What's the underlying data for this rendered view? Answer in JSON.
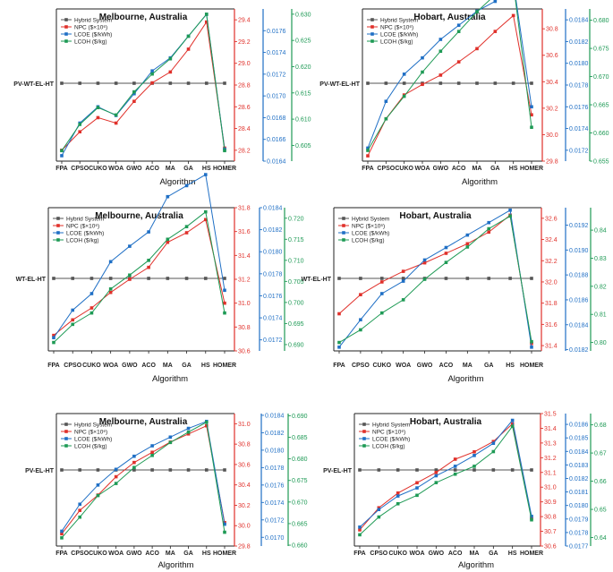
{
  "figure": {
    "categories": [
      "FPA",
      "CPSO",
      "CUKO",
      "WOA",
      "GWO",
      "ACO",
      "MA",
      "GA",
      "HS",
      "HOMER"
    ],
    "colors": {
      "hybrid": "#555555",
      "npc": "#e0302a",
      "lcoe": "#1f6fc5",
      "lcoh": "#1e9a55"
    }
  },
  "chart_data": [
    {
      "type": "line",
      "title": "Melbourne, Australia",
      "hybrid_label": "PV-WT-EL-HT",
      "xlabel": "Algorithm",
      "legend_position": "top-left",
      "legend": [
        "Hybrid System",
        "NPC ($×10⁶)",
        "LCOE ($/kWh)",
        "LCOH ($/kg)"
      ],
      "axes": {
        "npc": {
          "range": [
            28.1,
            29.5
          ],
          "ticks": [
            "28.2",
            "28.4",
            "28.6",
            "28.8",
            "29.0",
            "29.2",
            "29.4"
          ]
        },
        "lcoe": {
          "range": [
            0.0164,
            0.0178
          ],
          "ticks": [
            "0.0164",
            "0.0166",
            "0.0168",
            "0.0170",
            "0.0172",
            "0.0174",
            "0.0176"
          ]
        },
        "lcoh": {
          "range": [
            0.602,
            0.631
          ],
          "ticks": [
            "0.605",
            "0.610",
            "0.615",
            "0.620",
            "0.625",
            "0.630"
          ]
        }
      },
      "series": [
        {
          "name": "NPC ($×10⁶)",
          "axis": "npc",
          "values": [
            28.2,
            28.37,
            28.5,
            28.45,
            28.65,
            28.82,
            28.92,
            29.13,
            29.38,
            28.22
          ]
        },
        {
          "name": "LCOE ($/kWh)",
          "axis": "lcoe",
          "values": [
            0.01645,
            0.01675,
            0.0169,
            0.01682,
            0.01702,
            0.01723,
            0.01735,
            0.01755,
            0.01775,
            0.01651
          ]
        },
        {
          "name": "LCOH ($/kg)",
          "axis": "lcoh",
          "values": [
            0.604,
            0.609,
            0.6122,
            0.6108,
            0.6152,
            0.6186,
            0.6215,
            0.6258,
            0.63,
            0.604
          ]
        }
      ]
    },
    {
      "type": "line",
      "title": "Hobart, Australia",
      "hybrid_label": "PV-WT-EL-HT",
      "xlabel": "Algorithm",
      "legend_position": "top-left",
      "legend": [
        "Hybrid System",
        "NPC ($×10⁶)",
        "LCOE ($/kWh)",
        "LCOH ($/kg)"
      ],
      "axes": {
        "npc": {
          "range": [
            29.8,
            30.95
          ],
          "ticks": [
            "29.8",
            "30.0",
            "30.2",
            "30.4",
            "30.6",
            "30.8"
          ]
        },
        "lcoe": {
          "range": [
            0.0171,
            0.0185
          ],
          "ticks": [
            "0.0172",
            "0.0174",
            "0.0176",
            "0.0178",
            "0.0180",
            "0.0182",
            "0.0184"
          ]
        },
        "lcoh": {
          "range": [
            0.655,
            0.682
          ],
          "ticks": [
            "0.655",
            "0.660",
            "0.665",
            "0.670",
            "0.675",
            "0.680"
          ]
        }
      },
      "series": [
        {
          "name": "NPC ($×10⁶)",
          "axis": "npc",
          "values": [
            29.84,
            30.12,
            30.3,
            30.38,
            30.45,
            30.55,
            30.65,
            30.78,
            30.9,
            30.15
          ]
        },
        {
          "name": "LCOE ($/kWh)",
          "axis": "lcoe",
          "values": [
            0.01722,
            0.01765,
            0.0179,
            0.01805,
            0.01822,
            0.01835,
            0.01848,
            0.01857,
            0.01875,
            0.0176
          ]
        },
        {
          "name": "LCOH ($/kg)",
          "axis": "lcoh",
          "values": [
            0.6569,
            0.6625,
            0.6665,
            0.6708,
            0.6745,
            0.678,
            0.6815,
            0.6845,
            0.6865,
            0.661
          ]
        }
      ]
    },
    {
      "type": "line",
      "title": "Melbourne, Australia",
      "hybrid_label": "WT-EL-HT",
      "xlabel": "Algorithm",
      "legend_position": "top-left",
      "legend": [
        "Hybrid System",
        "NPC ($×10⁶)",
        "LCOE ($/kWh)",
        "LCOH ($/kg)"
      ],
      "axes": {
        "npc": {
          "range": [
            30.6,
            31.8
          ],
          "ticks": [
            "30.6",
            "30.8",
            "31.0",
            "31.2",
            "31.4",
            "31.6",
            "31.8"
          ]
        },
        "lcoe": {
          "range": [
            0.0171,
            0.0184
          ],
          "ticks": [
            "0.0172",
            "0.0174",
            "0.0176",
            "0.0178",
            "0.0180",
            "0.0182",
            "0.0184"
          ]
        },
        "lcoh": {
          "range": [
            0.6885,
            0.7225
          ],
          "ticks": [
            "0.690",
            "0.695",
            "0.700",
            "0.705",
            "0.710",
            "0.715",
            "0.720"
          ]
        }
      },
      "series": [
        {
          "name": "NPC ($×10⁶)",
          "axis": "npc",
          "values": [
            30.73,
            30.86,
            30.96,
            31.09,
            31.2,
            31.3,
            31.51,
            31.59,
            31.7,
            31.0
          ]
        },
        {
          "name": "LCOE ($/kWh)",
          "axis": "lcoe",
          "values": [
            0.01722,
            0.01747,
            0.01762,
            0.01791,
            0.01805,
            0.01818,
            0.0185,
            0.0186,
            0.0187,
            0.01765
          ]
        },
        {
          "name": "LCOH ($/kg)",
          "axis": "lcoh",
          "values": [
            0.6905,
            0.6948,
            0.6975,
            0.7032,
            0.7065,
            0.71,
            0.715,
            0.718,
            0.7215,
            0.6975
          ]
        }
      ]
    },
    {
      "type": "line",
      "title": "Hobart, Australia",
      "hybrid_label": "WT-EL-HT",
      "xlabel": "Algorithm",
      "legend_position": "top-left",
      "legend": [
        "Hybrid System",
        "NPC ($×10⁶)",
        "LCOE ($/kWh)",
        "LCOH ($/kg)"
      ],
      "axes": {
        "npc": {
          "range": [
            31.35,
            32.7
          ],
          "ticks": [
            "31.4",
            "31.6",
            "31.8",
            "32.0",
            "32.2",
            "32.4",
            "32.6"
          ]
        },
        "lcoe": {
          "range": [
            0.01819,
            0.01934
          ],
          "ticks": [
            "0.0182",
            "0.0184",
            "0.0186",
            "0.0188",
            "0.0190",
            "0.0192"
          ]
        },
        "lcoh": {
          "range": [
            0.797,
            0.848
          ],
          "ticks": [
            "0.80",
            "0.81",
            "0.82",
            "0.83",
            "0.84"
          ]
        }
      },
      "series": [
        {
          "name": "NPC ($×10⁶)",
          "axis": "npc",
          "values": [
            31.7,
            31.88,
            32.0,
            32.1,
            32.18,
            32.27,
            32.36,
            32.47,
            32.63,
            31.42
          ]
        },
        {
          "name": "LCOE ($/kWh)",
          "axis": "lcoe",
          "values": [
            0.01822,
            0.01844,
            0.01865,
            0.01875,
            0.01892,
            0.01902,
            0.01912,
            0.01922,
            0.01932,
            0.01822
          ]
        },
        {
          "name": "LCOH ($/kg)",
          "axis": "lcoh",
          "values": [
            0.8,
            0.8045,
            0.8105,
            0.8152,
            0.8225,
            0.8285,
            0.834,
            0.8405,
            0.845,
            0.8003
          ]
        }
      ]
    },
    {
      "type": "line",
      "title": "Melbourne, Australia",
      "hybrid_label": "PV-EL-HT",
      "xlabel": "Algorithm",
      "legend_position": "top-left",
      "legend": [
        "Hybrid System",
        "NPC ($×10⁶)",
        "LCOE ($/kWh)",
        "LCOH ($/kg)"
      ],
      "axes": {
        "npc": {
          "range": [
            29.8,
            31.1
          ],
          "ticks": [
            "29.8",
            "30.0",
            "30.2",
            "30.4",
            "30.6",
            "30.8",
            "31.0"
          ]
        },
        "lcoe": {
          "range": [
            0.0169,
            0.01842
          ],
          "ticks": [
            "0.0170",
            "0.0172",
            "0.0174",
            "0.0176",
            "0.0178",
            "0.0180",
            "0.0182",
            "0.0184"
          ]
        },
        "lcoh": {
          "range": [
            0.6598,
            0.6905
          ],
          "ticks": [
            "0.660",
            "0.665",
            "0.670",
            "0.675",
            "0.680",
            "0.685",
            "0.690"
          ]
        }
      },
      "series": [
        {
          "name": "NPC ($×10⁶)",
          "axis": "npc",
          "values": [
            29.92,
            30.15,
            30.3,
            30.48,
            30.62,
            30.72,
            30.82,
            30.9,
            30.98,
            30.03
          ]
        },
        {
          "name": "LCOE ($/kWh)",
          "axis": "lcoe",
          "values": [
            0.01707,
            0.01738,
            0.0176,
            0.01778,
            0.01793,
            0.01805,
            0.01815,
            0.01825,
            0.01833,
            0.01715
          ]
        },
        {
          "name": "LCOH ($/kg)",
          "axis": "lcoh",
          "values": [
            0.6617,
            0.6665,
            0.6715,
            0.6743,
            0.678,
            0.6808,
            0.6838,
            0.6862,
            0.6885,
            0.663
          ]
        }
      ]
    },
    {
      "type": "line",
      "title": "Hobart, Australia",
      "hybrid_label": "PV-EL-HT",
      "xlabel": "Algorithm",
      "legend_position": "top-left",
      "legend": [
        "Hybrid System",
        "NPC ($×10⁶)",
        "LCOE ($/kWh)",
        "LCOH ($/kg)"
      ],
      "axes": {
        "npc": {
          "range": [
            30.6,
            31.5
          ],
          "ticks": [
            "30.6",
            "30.7",
            "30.8",
            "30.9",
            "31.0",
            "31.1",
            "31.2",
            "31.3",
            "31.4",
            "31.5"
          ]
        },
        "lcoe": {
          "range": [
            0.0177,
            0.01868
          ],
          "ticks": [
            "0.0177",
            "0.0178",
            "0.0179",
            "0.0180",
            "0.0181",
            "0.0182",
            "0.0183",
            "0.0184",
            "0.0185",
            "0.0186"
          ]
        },
        "lcoh": {
          "range": [
            0.637,
            0.684
          ],
          "ticks": [
            "0.64",
            "0.65",
            "0.66",
            "0.67",
            "0.68"
          ]
        }
      },
      "series": [
        {
          "name": "NPC ($×10⁶)",
          "axis": "npc",
          "values": [
            30.71,
            30.86,
            30.96,
            31.03,
            31.1,
            31.19,
            31.24,
            31.31,
            31.43,
            30.79
          ]
        },
        {
          "name": "LCOE ($/kWh)",
          "axis": "lcoe",
          "values": [
            0.01784,
            0.01797,
            0.01807,
            0.01813,
            0.01822,
            0.01829,
            0.01837,
            0.01846,
            0.01863,
            0.01792
          ]
        },
        {
          "name": "LCOH ($/kg)",
          "axis": "lcoh",
          "values": [
            0.641,
            0.6473,
            0.652,
            0.655,
            0.6595,
            0.6625,
            0.6653,
            0.6705,
            0.6795,
            0.6463
          ]
        }
      ]
    }
  ]
}
